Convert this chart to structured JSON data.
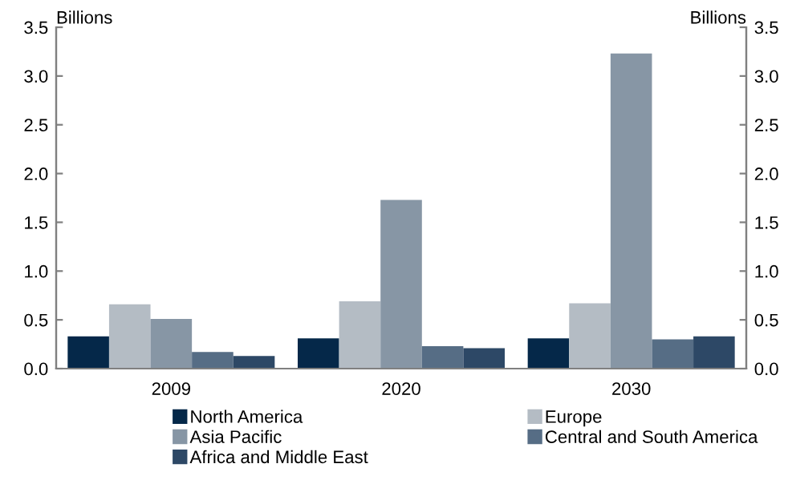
{
  "chart_data": {
    "type": "bar",
    "ylabel": "Billions",
    "y2label": "Billions",
    "categories": [
      "2009",
      "2020",
      "2030"
    ],
    "series": [
      {
        "name": "North America",
        "color": "#052849",
        "values": [
          0.33,
          0.31,
          0.31
        ]
      },
      {
        "name": "Europe",
        "color": "#b4bcc4",
        "values": [
          0.66,
          0.69,
          0.67
        ]
      },
      {
        "name": "Asia Pacific",
        "color": "#8796a5",
        "values": [
          0.51,
          1.73,
          3.23
        ]
      },
      {
        "name": "Central and South America",
        "color": "#566d85",
        "values": [
          0.17,
          0.23,
          0.3
        ]
      },
      {
        "name": "Africa and Middle East",
        "color": "#2d4866",
        "values": [
          0.13,
          0.21,
          0.33
        ]
      }
    ],
    "ylim": [
      0,
      3.5
    ],
    "yticks": [
      {
        "value": 0,
        "label": "0.0"
      },
      {
        "value": 0.5,
        "label": "0.5"
      },
      {
        "value": 1,
        "label": "1.0"
      },
      {
        "value": 1.5,
        "label": "1.5"
      },
      {
        "value": 2,
        "label": "2.0"
      },
      {
        "value": 2.5,
        "label": "2.5"
      },
      {
        "value": 3,
        "label": "3.0"
      },
      {
        "value": 3.5,
        "label": "3.5"
      }
    ],
    "y2lim": [
      0,
      3.5
    ],
    "y2ticks": [
      {
        "value": 0,
        "label": "0.0"
      },
      {
        "value": 0.5,
        "label": "0.5"
      },
      {
        "value": 1,
        "label": "1.0"
      },
      {
        "value": 1.5,
        "label": "1.5"
      },
      {
        "value": 2,
        "label": "2.0"
      },
      {
        "value": 2.5,
        "label": "2.5"
      },
      {
        "value": 3,
        "label": "3.0"
      },
      {
        "value": 3.5,
        "label": "3.5"
      }
    ],
    "grid": false,
    "legend": "bottom"
  }
}
